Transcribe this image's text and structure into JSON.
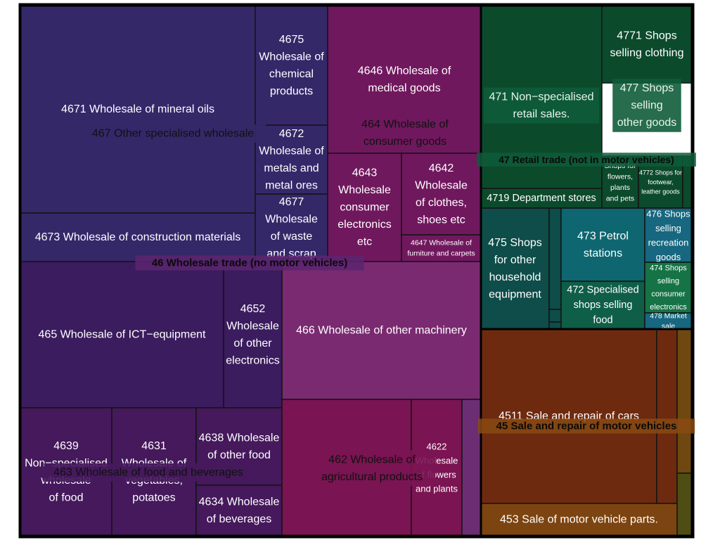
{
  "chart_data": {
    "type": "treemap",
    "title": "",
    "leaves": [
      {
        "id": "l4671",
        "label": [
          "4671 Wholesale of mineral oils"
        ],
        "color": "#352869",
        "group": "46"
      },
      {
        "id": "l4675",
        "label": [
          "4675",
          "Wholesale of",
          "chemical",
          "products"
        ],
        "color": "#352869",
        "group": "46"
      },
      {
        "id": "l4672",
        "label": [
          "4672",
          "Wholesale of",
          "metals and",
          "metal ores"
        ],
        "color": "#352869",
        "group": "46"
      },
      {
        "id": "l4673",
        "label": [
          "4673 Wholesale of construction materials"
        ],
        "color": "#352869",
        "group": "46"
      },
      {
        "id": "l4677",
        "label": [
          "4677",
          "Wholesale",
          "of waste",
          "and scrap"
        ],
        "color": "#352869",
        "group": "46"
      },
      {
        "id": "l4646",
        "label": [
          "4646 Wholesale of",
          "medical goods"
        ],
        "color": "#70185e",
        "group": "46"
      },
      {
        "id": "l4643",
        "label": [
          "4643",
          "Wholesale",
          "consumer",
          "electronics",
          "etc"
        ],
        "color": "#70185e",
        "group": "46"
      },
      {
        "id": "l4642",
        "label": [
          "4642",
          "Wholesale",
          "of clothes,",
          "shoes etc"
        ],
        "color": "#70185e",
        "group": "46"
      },
      {
        "id": "l4647",
        "label": [
          "4647 Wholesale of",
          "furniture and carpets"
        ],
        "color": "#70185e",
        "group": "46"
      },
      {
        "id": "l465",
        "label": [
          "465 Wholesale of ICT−equipment"
        ],
        "color": "#3b1c5e",
        "group": "46"
      },
      {
        "id": "l4652",
        "label": [
          "4652",
          "Wholesale",
          "of other",
          "electronics"
        ],
        "color": "#3b1c5e",
        "group": "46"
      },
      {
        "id": "l466",
        "label": [
          "466 Wholesale of other machinery"
        ],
        "color": "#7a2a70",
        "group": "46"
      },
      {
        "id": "l4639",
        "label": [
          "4639",
          "Non−specialised",
          "wholesale",
          "of food"
        ],
        "color": "#45195c",
        "group": "46"
      },
      {
        "id": "l4631",
        "label": [
          "4631",
          "Wholesale of",
          "vegetables,",
          "potatoes"
        ],
        "color": "#45195c",
        "group": "46"
      },
      {
        "id": "l4638",
        "label": [
          "4638 Wholesale",
          "of other food"
        ],
        "color": "#45195c",
        "group": "46"
      },
      {
        "id": "l4634",
        "label": [
          "4634 Wholesale",
          "of beverages"
        ],
        "color": "#45195c",
        "group": "46"
      },
      {
        "id": "l462main",
        "label": [],
        "color": "#7a1452",
        "group": "46"
      },
      {
        "id": "l4622",
        "label": [
          "4622",
          "Wholesale",
          "of flowers",
          "and plants"
        ],
        "color": "#7a1452",
        "group": "46"
      },
      {
        "id": "l462small",
        "label": [],
        "color": "#6b2e73",
        "group": "46"
      },
      {
        "id": "l471",
        "label": [],
        "color": "#0c4a2c",
        "group": "47"
      },
      {
        "id": "l4771",
        "label": [
          "4771 Shops",
          "selling clothing"
        ],
        "color": "#0c4a2c",
        "group": "47"
      },
      {
        "id": "l4719",
        "label": [
          "4719 Department stores"
        ],
        "color": "#0c4a2c",
        "group": "47"
      },
      {
        "id": "l4776",
        "label": [
          "Shops for",
          "flowers,",
          "plants",
          "and pets"
        ],
        "color": "#0c4a2c",
        "group": "47"
      },
      {
        "id": "l4772",
        "label": [
          "4772 Shops for",
          "footwear,",
          "leather goods"
        ],
        "color": "#0c4a2c",
        "group": "47"
      },
      {
        "id": "l477s",
        "label": [],
        "color": "#0c4a2c",
        "group": "47"
      },
      {
        "id": "l475",
        "label": [
          "475 Shops",
          "for other",
          "household",
          "equipment"
        ],
        "color": "#0e4d49",
        "group": "47"
      },
      {
        "id": "l475a",
        "label": [],
        "color": "#0e4d49",
        "group": "47"
      },
      {
        "id": "l475b",
        "label": [],
        "color": "#0e4d49",
        "group": "47"
      },
      {
        "id": "l475c",
        "label": [],
        "color": "#0e4d49",
        "group": "47"
      },
      {
        "id": "l473",
        "label": [
          "473 Petrol",
          "stations"
        ],
        "color": "#0e6670",
        "group": "47"
      },
      {
        "id": "l472",
        "label": [
          "472 Specialised",
          "shops selling",
          "food"
        ],
        "color": "#0f5e48",
        "group": "47"
      },
      {
        "id": "l476",
        "label": [
          "476 Shops",
          "selling",
          "recreation",
          "goods"
        ],
        "color": "#16677f",
        "group": "47"
      },
      {
        "id": "l474",
        "label": [
          "474 Shops",
          "selling",
          "consumer",
          "electronics"
        ],
        "color": "#157346",
        "group": "47"
      },
      {
        "id": "l478",
        "label": [
          "478 Market",
          "sale"
        ],
        "color": "#16677f",
        "group": "47"
      },
      {
        "id": "l4511",
        "label": [
          "4511 Sale and repair of cars"
        ],
        "color": "#6e2a0f",
        "group": "45"
      },
      {
        "id": "l45a",
        "label": [],
        "color": "#6e2a0f",
        "group": "45"
      },
      {
        "id": "l45b",
        "label": [],
        "color": "#6e4810",
        "group": "45"
      },
      {
        "id": "l45c",
        "label": [],
        "color": "#4e4d14",
        "group": "45"
      },
      {
        "id": "l453",
        "label": [
          "453 Sale of motor vehicle parts."
        ],
        "color": "#7c4410",
        "group": "45"
      }
    ],
    "subgroups": [
      {
        "id": "s467",
        "label": [
          "467 Other specialised wholesale"
        ],
        "color": "#352869"
      },
      {
        "id": "s464",
        "label": [
          "464 Wholesale of",
          "consumer goods"
        ],
        "color": "#70185e"
      },
      {
        "id": "s463",
        "label": [
          "463 Wholesale of food and beverages"
        ],
        "color": "#45195c"
      },
      {
        "id": "s462",
        "label": [
          "462 Wholesale of",
          "agricultural products"
        ],
        "color": "#7a1452"
      },
      {
        "id": "s471",
        "label": [
          "471 Non−specialised",
          "retail sales."
        ],
        "color": "#0e5c3a"
      },
      {
        "id": "s477",
        "label": [
          "477 Shops",
          "selling",
          "other goods"
        ],
        "color": "#0e5c3a"
      }
    ],
    "groups": [
      {
        "id": "g46",
        "label": "46 Wholesale trade (no motor vehicles)",
        "color": "#5c2470"
      },
      {
        "id": "g47",
        "label": "47 Retail trade (not in motor vehicles)",
        "color": "#0e5c3a"
      },
      {
        "id": "g45",
        "label": "45 Sale and repair of motor vehicles",
        "color": "#8a4a12"
      }
    ]
  }
}
